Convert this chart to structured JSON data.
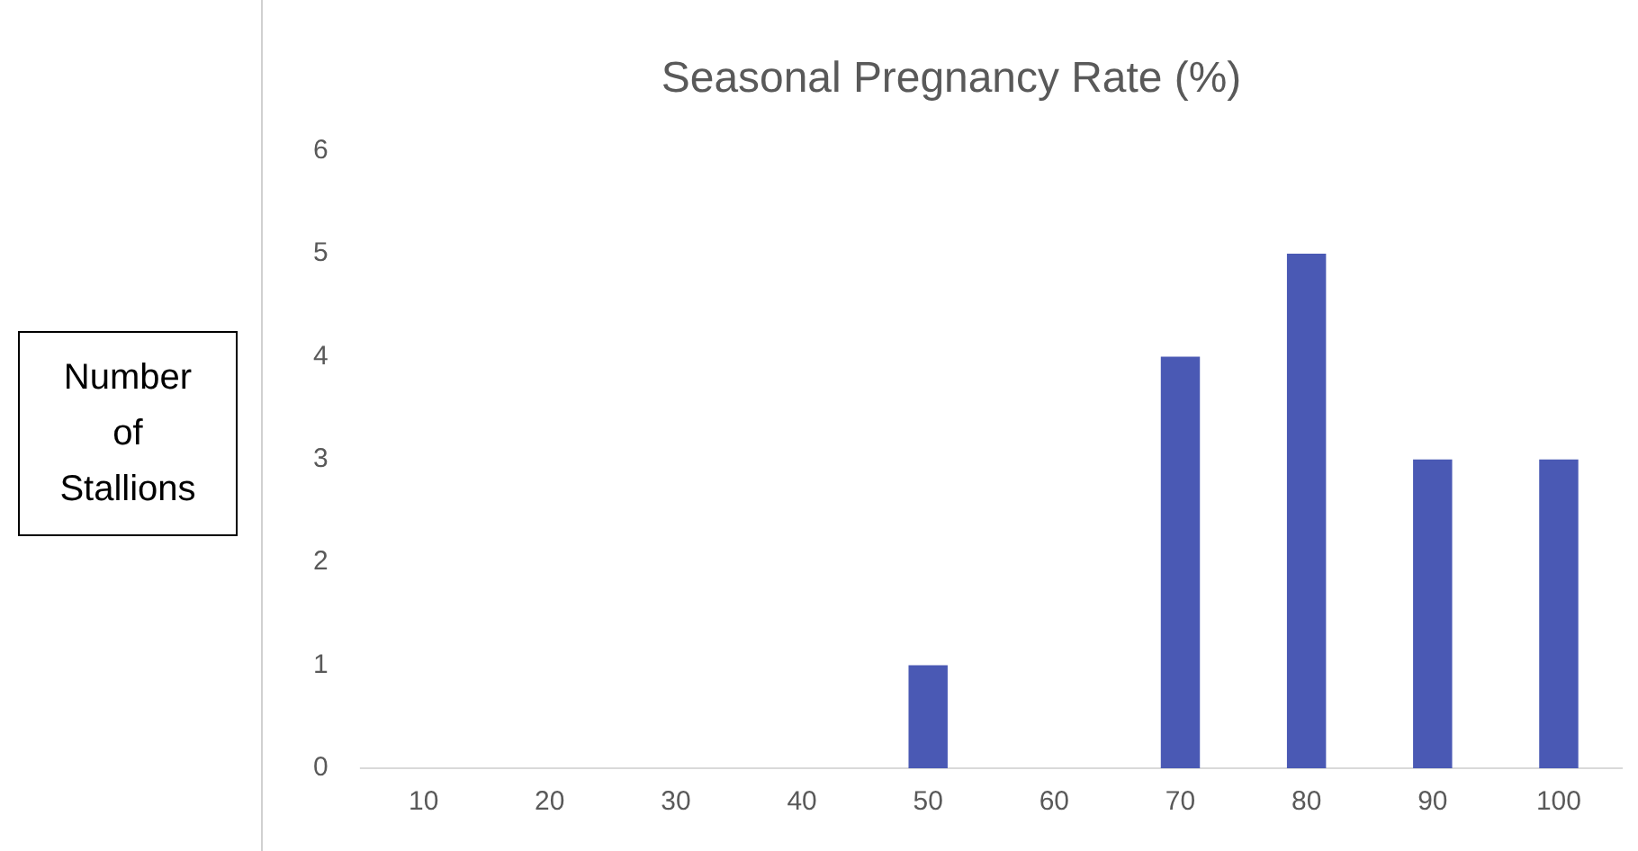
{
  "chart_data": {
    "type": "bar",
    "title": "Seasonal Pregnancy Rate (%)",
    "ylabel": "Number of Stallions",
    "categories": [
      "10",
      "20",
      "30",
      "40",
      "50",
      "60",
      "70",
      "80",
      "90",
      "100"
    ],
    "values": [
      0,
      0,
      0,
      0,
      1,
      0,
      4,
      5,
      3,
      3
    ],
    "color": "#4a59b4",
    "ylim": [
      0,
      6
    ],
    "yticks": [
      0,
      1,
      2,
      3,
      4,
      5,
      6
    ],
    "grid": false,
    "legend": false
  }
}
